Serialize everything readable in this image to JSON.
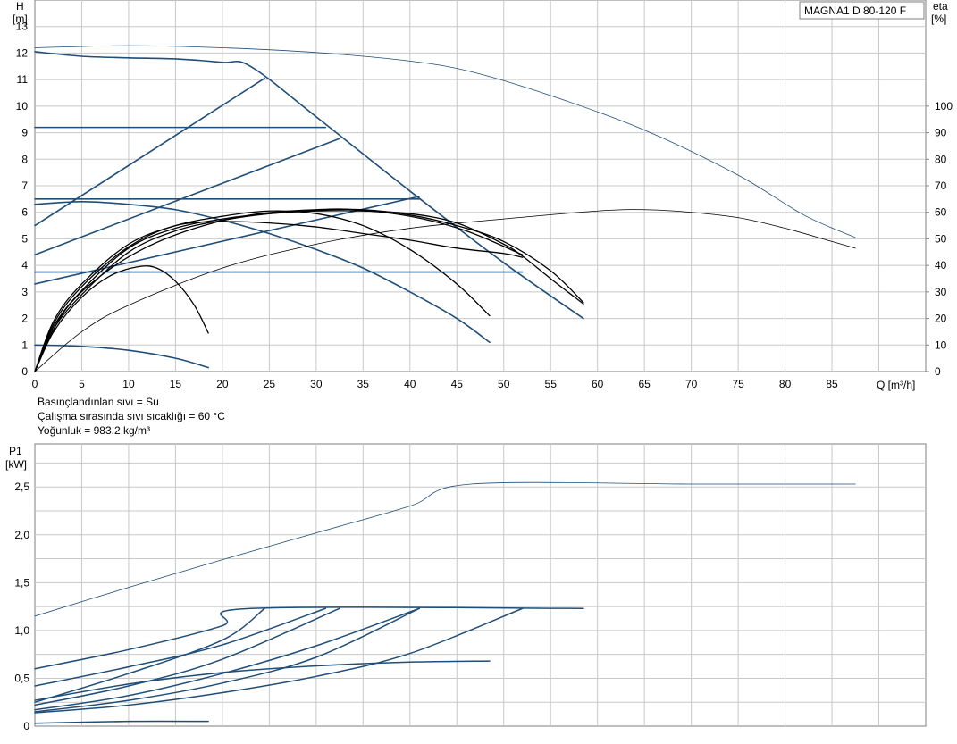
{
  "info": {
    "liquid": "Basınçlandınlan sıvı = Su",
    "temperature": "Çalışma sırasında sıvı sıcaklığı = 60 °C",
    "density": "Yoğunluk = 983.2 kg/m³"
  },
  "colors": {
    "curve_blue": "#1f4e79",
    "curve_black": "#000000",
    "grid": "#c8c8c8",
    "frame": "#7f7f7f"
  },
  "chart_data": [
    {
      "type": "line",
      "title": "MAGNA1 D 80-120 F",
      "ylabel_top": "H",
      "ylabel_unit": "[m]",
      "y2label_top": "eta",
      "y2label_unit": "[%]",
      "xlabel": "Q [m³/h]",
      "xlim": [
        0,
        95
      ],
      "ylim": [
        0,
        14
      ],
      "y2lim": [
        0,
        100
      ],
      "x_ticks": [
        0,
        5,
        10,
        15,
        20,
        25,
        30,
        35,
        40,
        45,
        50,
        55,
        60,
        65,
        70,
        75,
        80,
        85
      ],
      "y_ticks": [
        0,
        1,
        2,
        3,
        4,
        5,
        6,
        7,
        8,
        9,
        10,
        11,
        12,
        13
      ],
      "y2_ticks": [
        0,
        10,
        20,
        30,
        40,
        50,
        60,
        70,
        80,
        90,
        100
      ],
      "grid": true,
      "series": [
        {
          "color": "blue",
          "width": 1.6,
          "points": [
            [
              0,
              12.05
            ],
            [
              5,
              11.88
            ],
            [
              10,
              11.82
            ],
            [
              15,
              11.78
            ],
            [
              20,
              11.65
            ],
            [
              23,
              11.5
            ],
            [
              30,
              9.6
            ],
            [
              40,
              6.8
            ],
            [
              50,
              4.1
            ],
            [
              58.5,
              2.0
            ]
          ]
        },
        {
          "color": "blue",
          "width": 1.6,
          "points": [
            [
              0,
              5.5
            ],
            [
              24.5,
              11.05
            ]
          ]
        },
        {
          "color": "blue",
          "width": 1.6,
          "points": [
            [
              0,
              9.2
            ],
            [
              31,
              9.2
            ]
          ]
        },
        {
          "color": "blue",
          "width": 1.6,
          "points": [
            [
              0,
              4.4
            ],
            [
              32.5,
              8.78
            ]
          ]
        },
        {
          "color": "blue",
          "width": 1.6,
          "points": [
            [
              0,
              6.5
            ],
            [
              41,
              6.5
            ]
          ]
        },
        {
          "color": "blue",
          "width": 1.6,
          "points": [
            [
              0,
              3.3
            ],
            [
              41,
              6.6
            ]
          ]
        },
        {
          "color": "blue",
          "width": 1.6,
          "points": [
            [
              0,
              3.75
            ],
            [
              52,
              3.75
            ]
          ]
        },
        {
          "color": "blue",
          "width": 1.6,
          "points": [
            [
              0,
              6.3
            ],
            [
              5,
              6.4
            ],
            [
              10,
              6.3
            ],
            [
              15,
              6.1
            ],
            [
              20,
              5.7
            ],
            [
              25,
              5.2
            ],
            [
              30,
              4.6
            ],
            [
              35,
              3.9
            ],
            [
              40,
              3.0
            ],
            [
              45,
              2.0
            ],
            [
              48.5,
              1.1
            ]
          ]
        },
        {
          "color": "blue",
          "width": 1.6,
          "points": [
            [
              0,
              1.0
            ],
            [
              5,
              0.95
            ],
            [
              10,
              0.8
            ],
            [
              15,
              0.5
            ],
            [
              18.5,
              0.15
            ]
          ]
        },
        {
          "color": "blue",
          "width": 0.8,
          "points": [
            [
              0,
              12.2
            ],
            [
              10,
              12.28
            ],
            [
              20,
              12.2
            ],
            [
              30,
              12.02
            ],
            [
              40,
              11.7
            ],
            [
              46.5,
              11.3
            ],
            [
              55,
              10.4
            ],
            [
              65,
              9.1
            ],
            [
              75,
              7.4
            ],
            [
              82,
              5.9
            ],
            [
              87.5,
              5.05
            ]
          ]
        },
        {
          "color": "black",
          "width": 0.8,
          "axis": "eta",
          "points": [
            [
              0,
              0
            ],
            [
              5,
              15
            ],
            [
              10,
              25
            ],
            [
              20,
              39
            ],
            [
              30,
              48
            ],
            [
              40,
              54
            ],
            [
              50,
              57.5
            ],
            [
              60,
              60.5
            ],
            [
              65,
              61
            ],
            [
              70,
              60
            ],
            [
              75,
              58
            ],
            [
              80,
              54
            ],
            [
              85,
              49
            ],
            [
              87.5,
              46.5
            ]
          ]
        },
        {
          "color": "black",
          "width": 1.3,
          "points": [
            [
              0,
              0
            ],
            [
              2,
              1.7
            ],
            [
              5,
              3.05
            ],
            [
              10,
              4.65
            ],
            [
              15,
              5.4
            ],
            [
              20,
              5.75
            ],
            [
              25,
              5.95
            ],
            [
              30,
              6.05
            ],
            [
              35,
              6.05
            ],
            [
              40,
              5.95
            ],
            [
              45,
              5.6
            ],
            [
              50,
              4.8
            ],
            [
              52,
              4.35
            ],
            [
              55,
              3.5
            ],
            [
              58.5,
              2.55
            ]
          ]
        },
        {
          "color": "black",
          "width": 1.3,
          "points": [
            [
              0,
              0
            ],
            [
              2,
              1.6
            ],
            [
              5,
              2.9
            ],
            [
              10,
              4.5
            ],
            [
              15,
              5.3
            ],
            [
              20,
              5.7
            ],
            [
              25,
              5.95
            ],
            [
              30,
              6.08
            ],
            [
              35,
              6.1
            ],
            [
              40,
              5.9
            ],
            [
              45,
              5.5
            ],
            [
              50,
              4.9
            ],
            [
              55,
              3.8
            ],
            [
              58.5,
              2.6
            ]
          ]
        },
        {
          "color": "black",
          "width": 1.3,
          "points": [
            [
              0,
              0
            ],
            [
              3,
              2.2
            ],
            [
              7,
              3.6
            ],
            [
              12,
              4.7
            ],
            [
              18,
              5.5
            ],
            [
              24,
              5.95
            ],
            [
              30,
              6.1
            ],
            [
              34,
              6.1
            ],
            [
              40,
              5.85
            ],
            [
              46,
              5.3
            ],
            [
              52,
              4.4
            ]
          ]
        },
        {
          "color": "black",
          "width": 1.3,
          "points": [
            [
              0,
              0
            ],
            [
              2,
              1.9
            ],
            [
              5,
              3.3
            ],
            [
              10,
              4.8
            ],
            [
              15,
              5.5
            ],
            [
              20,
              5.85
            ],
            [
              25,
              6.05
            ],
            [
              30,
              5.95
            ],
            [
              35,
              5.5
            ],
            [
              40,
              4.6
            ],
            [
              45,
              3.3
            ],
            [
              48.5,
              2.1
            ]
          ]
        },
        {
          "color": "black",
          "width": 1.3,
          "points": [
            [
              0,
              0
            ],
            [
              2,
              1.8
            ],
            [
              5,
              3.2
            ],
            [
              10,
              4.7
            ],
            [
              15,
              5.5
            ],
            [
              20,
              5.65
            ],
            [
              25,
              5.6
            ],
            [
              30,
              5.45
            ],
            [
              35,
              5.2
            ],
            [
              40,
              4.95
            ],
            [
              45,
              4.65
            ],
            [
              50,
              4.45
            ],
            [
              52,
              4.3
            ]
          ]
        },
        {
          "color": "black",
          "width": 1.3,
          "points": [
            [
              0,
              0
            ],
            [
              2,
              1.5
            ],
            [
              5,
              2.8
            ],
            [
              8,
              3.6
            ],
            [
              11,
              3.95
            ],
            [
              13,
              3.9
            ],
            [
              15,
              3.4
            ],
            [
              17,
              2.5
            ],
            [
              18.5,
              1.45
            ]
          ]
        }
      ]
    },
    {
      "type": "line",
      "ylabel_top": "P1",
      "ylabel_unit": "[kW]",
      "xlim": [
        0,
        95
      ],
      "ylim": [
        0,
        2.95
      ],
      "y_ticks": [
        "0",
        "0,5",
        "1,0",
        "1,5",
        "2,0",
        "2,5"
      ],
      "y_tick_values": [
        0,
        0.5,
        1.0,
        1.5,
        2.0,
        2.5
      ],
      "grid": true,
      "series": [
        {
          "color": "blue",
          "width": 0.8,
          "points": [
            [
              0,
              1.15
            ],
            [
              10,
              1.45
            ],
            [
              20,
              1.74
            ],
            [
              30,
              2.02
            ],
            [
              40,
              2.3
            ],
            [
              46.5,
              2.53
            ],
            [
              70,
              2.53
            ],
            [
              87.5,
              2.53
            ]
          ]
        },
        {
          "color": "blue",
          "width": 1.5,
          "points": [
            [
              0,
              0.6
            ],
            [
              10,
              0.8
            ],
            [
              20,
              1.05
            ],
            [
              23,
              1.23
            ],
            [
              58.5,
              1.23
            ]
          ]
        },
        {
          "color": "blue",
          "width": 1.5,
          "points": [
            [
              0,
              0.42
            ],
            [
              10,
              0.62
            ],
            [
              20,
              0.85
            ],
            [
              31,
              1.23
            ]
          ]
        },
        {
          "color": "blue",
          "width": 1.5,
          "points": [
            [
              0,
              0.25
            ],
            [
              10,
              0.55
            ],
            [
              20,
              0.9
            ],
            [
              24.5,
              1.23
            ]
          ]
        },
        {
          "color": "blue",
          "width": 1.5,
          "points": [
            [
              0,
              0.22
            ],
            [
              10,
              0.42
            ],
            [
              20,
              0.7
            ],
            [
              32.5,
              1.23
            ]
          ]
        },
        {
          "color": "blue",
          "width": 1.5,
          "points": [
            [
              0,
              0.17
            ],
            [
              10,
              0.32
            ],
            [
              20,
              0.55
            ],
            [
              30,
              0.84
            ],
            [
              41,
              1.23
            ]
          ]
        },
        {
          "color": "blue",
          "width": 1.5,
          "points": [
            [
              0,
              0.15
            ],
            [
              10,
              0.27
            ],
            [
              20,
              0.45
            ],
            [
              30,
              0.72
            ],
            [
              41,
              1.23
            ]
          ]
        },
        {
          "color": "blue",
          "width": 1.5,
          "points": [
            [
              0,
              0.14
            ],
            [
              10,
              0.22
            ],
            [
              20,
              0.35
            ],
            [
              30,
              0.52
            ],
            [
              40,
              0.76
            ],
            [
              52,
              1.23
            ]
          ]
        },
        {
          "color": "blue",
          "width": 1.5,
          "points": [
            [
              0,
              0.27
            ],
            [
              10,
              0.44
            ],
            [
              20,
              0.56
            ],
            [
              30,
              0.63
            ],
            [
              40,
              0.67
            ],
            [
              48.5,
              0.68
            ]
          ]
        },
        {
          "color": "blue",
          "width": 1.5,
          "points": [
            [
              0,
              0.03
            ],
            [
              10,
              0.05
            ],
            [
              18.5,
              0.05
            ]
          ]
        }
      ]
    }
  ]
}
